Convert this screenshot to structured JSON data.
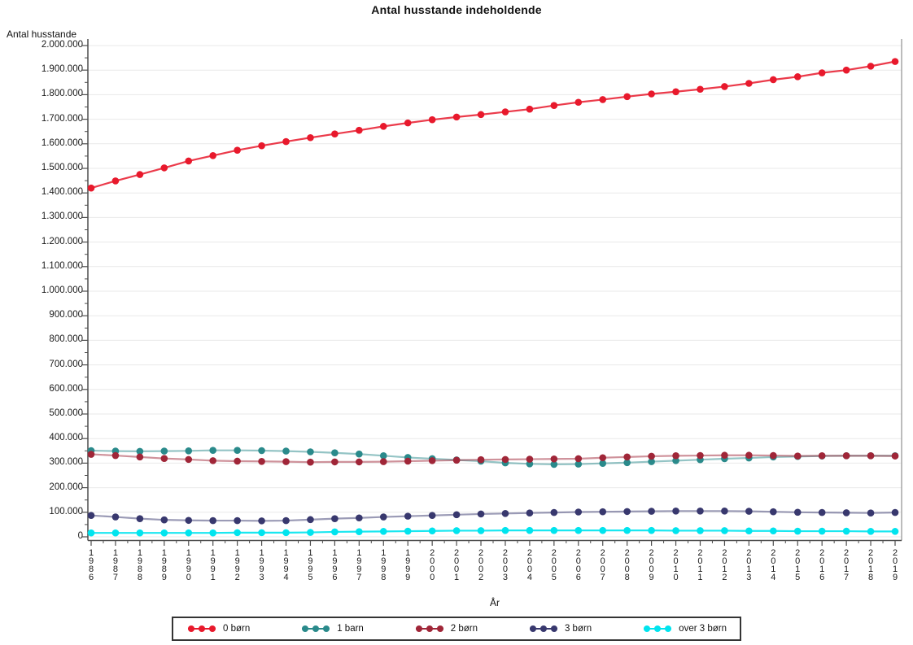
{
  "title": "Antal husstande indeholdende",
  "y_axis": {
    "label": "Antal husstande",
    "tick_labels": [
      "2.000.000",
      "1.900.000",
      "1.800.000",
      "1.700.000",
      "1.600.000",
      "1.500.000",
      "1.400.000",
      "1.300.000",
      "1.200.000",
      "1.100.000",
      "1.000.000",
      "900.000",
      "800.000",
      "700.000",
      "600.000",
      "500.000",
      "400.000",
      "300.000",
      "200.000",
      "100.000",
      "0"
    ]
  },
  "x_axis": {
    "label": "År"
  },
  "colors": {
    "grid": "#e9e9e9",
    "axis": "#4d4d4d",
    "frame_right": "#a6a6a6",
    "text": "#111111"
  },
  "chart_data": {
    "type": "line",
    "title": "Antal husstande indeholdende",
    "xlabel": "År",
    "ylabel": "Antal husstande",
    "ylim": [
      0,
      2000000
    ],
    "ytick_step": 100000,
    "grid": true,
    "legend_position": "bottom",
    "x": [
      1986,
      1987,
      1988,
      1989,
      1990,
      1991,
      1992,
      1993,
      1994,
      1995,
      1996,
      1997,
      1998,
      1999,
      2000,
      2001,
      2002,
      2003,
      2004,
      2005,
      2006,
      2007,
      2008,
      2009,
      2010,
      2011,
      2012,
      2013,
      2014,
      2015,
      2016,
      2017,
      2018,
      2019
    ],
    "series": [
      {
        "name": "0 børn",
        "color": "#e8192c",
        "values": [
          1420000,
          1449000,
          1475000,
          1502000,
          1530000,
          1552000,
          1574000,
          1592000,
          1609000,
          1625000,
          1640000,
          1655000,
          1671000,
          1685000,
          1698000,
          1709000,
          1719000,
          1730000,
          1741000,
          1756000,
          1769000,
          1780000,
          1792000,
          1803000,
          1812000,
          1822000,
          1833000,
          1846000,
          1861000,
          1873000,
          1889000,
          1900000,
          1916000,
          1935000
        ]
      },
      {
        "name": "1 barn",
        "color": "#2a8a8b",
        "values": [
          351000,
          349000,
          348000,
          349000,
          350000,
          352000,
          352000,
          351000,
          349000,
          346000,
          342000,
          337000,
          330000,
          323000,
          318000,
          313000,
          308000,
          301000,
          297000,
          295000,
          296000,
          299000,
          302000,
          306000,
          310000,
          314000,
          318000,
          321000,
          325000,
          327000,
          329000,
          330000,
          330000,
          330000
        ]
      },
      {
        "name": "2 børn",
        "color": "#a02638",
        "values": [
          336000,
          331000,
          325000,
          319000,
          315000,
          310000,
          308000,
          307000,
          306000,
          304000,
          305000,
          305000,
          306000,
          308000,
          310000,
          312000,
          314000,
          315000,
          316000,
          317000,
          318000,
          322000,
          325000,
          328000,
          330000,
          331000,
          332000,
          332000,
          331000,
          329000,
          330000,
          330000,
          330000,
          329000
        ]
      },
      {
        "name": "3 børn",
        "color": "#38386e",
        "values": [
          87000,
          81000,
          74000,
          69000,
          67000,
          66000,
          66000,
          65000,
          66000,
          70000,
          74000,
          77000,
          81000,
          84000,
          87000,
          90000,
          93000,
          95000,
          97000,
          99000,
          101000,
          102000,
          103000,
          104000,
          105000,
          105000,
          105000,
          104000,
          102000,
          100000,
          99000,
          98000,
          97000,
          99000
        ]
      },
      {
        "name": "over 3 børn",
        "color": "#00e4ee",
        "values": [
          16000,
          16000,
          16000,
          16000,
          16000,
          16000,
          17000,
          17000,
          17000,
          18000,
          20000,
          21000,
          22000,
          23000,
          24000,
          25000,
          25000,
          26000,
          26000,
          26000,
          26000,
          26000,
          26000,
          26000,
          25000,
          25000,
          25000,
          24000,
          24000,
          23000,
          23000,
          23000,
          22000,
          22000
        ]
      }
    ]
  }
}
